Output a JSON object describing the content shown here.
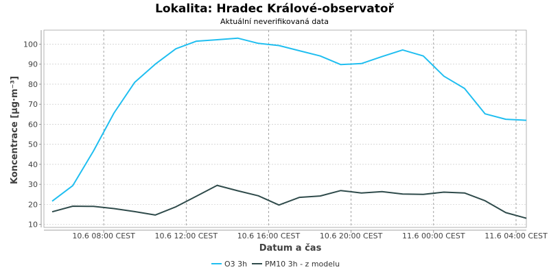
{
  "chart_data": {
    "type": "line",
    "title": "Lokalita: Hradec Králové-observatoř",
    "subtitle": "Aktuální neverifikovaná data",
    "xlabel": "Datum a čas",
    "ylabel": "Koncentrace [µg·m⁻³]",
    "ylim": [
      8.5,
      107
    ],
    "y_ticks": [
      10,
      20,
      30,
      40,
      50,
      60,
      70,
      80,
      90,
      100
    ],
    "x_ticks": [
      {
        "hour": 8,
        "label": "10.6 08:00 CEST"
      },
      {
        "hour": 12,
        "label": "10.6 12:00 CEST"
      },
      {
        "hour": 16,
        "label": "10.6 16:00 CEST"
      },
      {
        "hour": 20,
        "label": "10.6 20:00 CEST"
      },
      {
        "hour": 24,
        "label": "11.6 00:00 CEST"
      },
      {
        "hour": 28,
        "label": "11.6 04:00 CEST"
      }
    ],
    "xlim_hours": [
      5.1,
      28.5
    ],
    "grid": true,
    "legend_position": "bottom",
    "x_hours": [
      5.5,
      6.5,
      7.5,
      8.5,
      9.5,
      10.5,
      11.5,
      12.5,
      13.5,
      14.5,
      15.5,
      16.5,
      17.5,
      18.5,
      19.5,
      20.5,
      21.5,
      22.5,
      23.5,
      24.5,
      25.5,
      26.5,
      27.5,
      28.5
    ],
    "series": [
      {
        "name": "O3 3h",
        "color": "#1fbef0",
        "values": [
          21.6,
          29.4,
          46.6,
          65.6,
          80.9,
          90.0,
          97.7,
          101.5,
          102.2,
          103.0,
          100.4,
          99.3,
          96.7,
          94.1,
          89.8,
          90.3,
          93.8,
          97.1,
          94.1,
          84.0,
          77.9,
          65.2,
          62.5,
          62.0
        ]
      },
      {
        "name": "PM10 3h - z modelu",
        "color": "#2e4a4a",
        "values": [
          16.3,
          19.1,
          19.0,
          17.9,
          16.4,
          14.7,
          18.8,
          24.1,
          29.5,
          26.8,
          24.3,
          19.7,
          23.5,
          24.2,
          26.9,
          25.7,
          26.4,
          25.2,
          25.0,
          26.1,
          25.7,
          21.8,
          15.9,
          13.1
        ]
      }
    ]
  }
}
